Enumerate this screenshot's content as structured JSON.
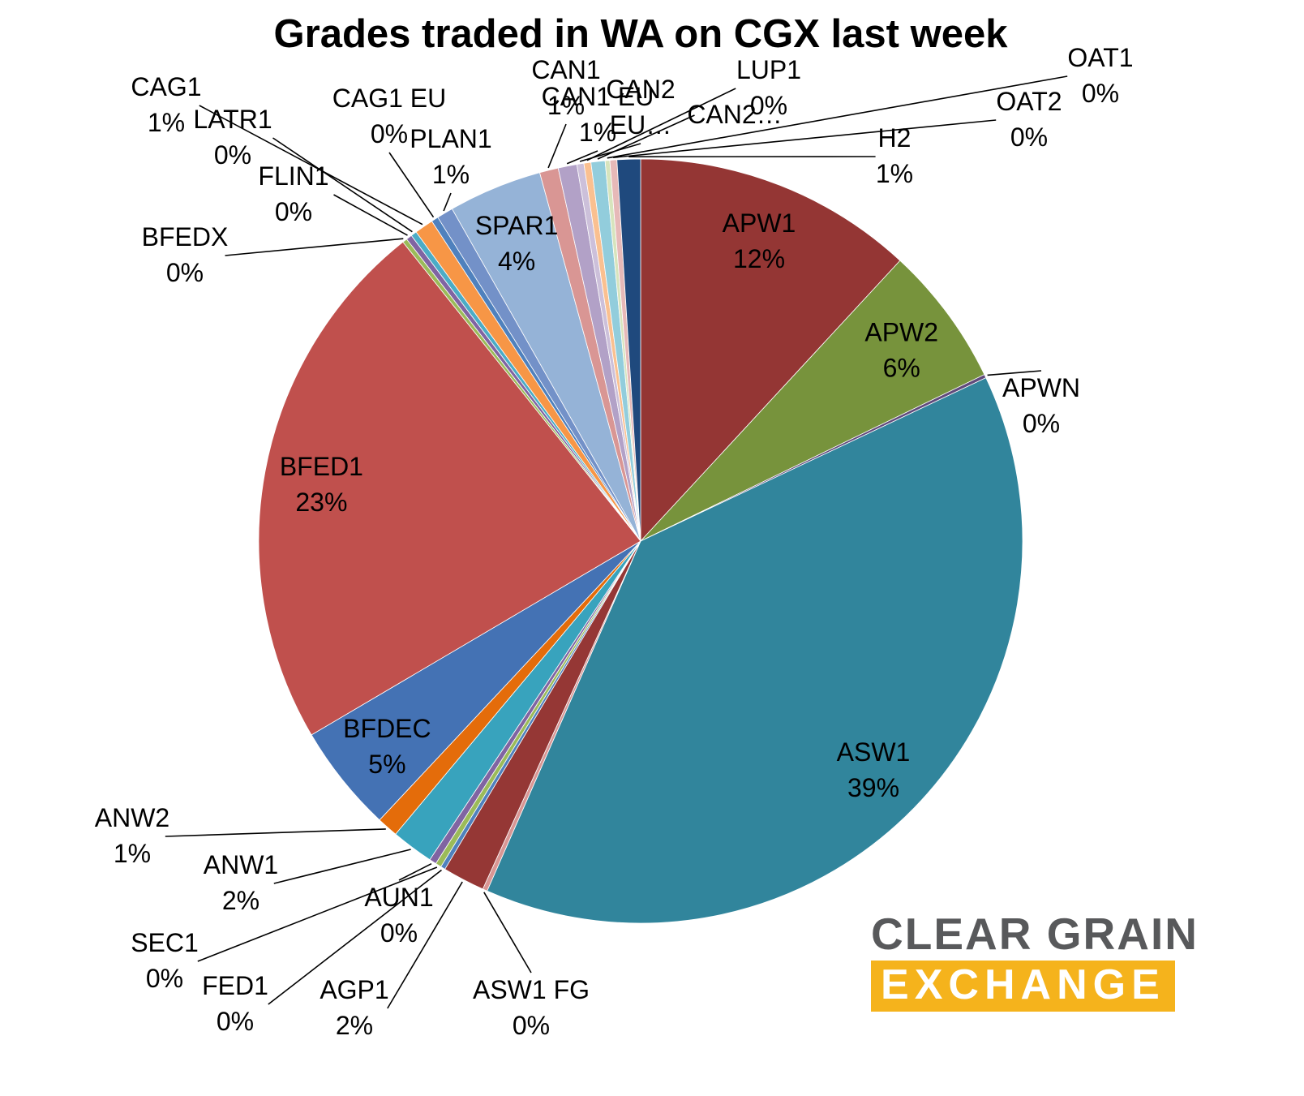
{
  "title": "Grades traded in WA on CGX last week",
  "logo": {
    "line1": "CLEAR GRAIN",
    "line2": "EXCHANGE",
    "gray": "#58595B",
    "gold": "#F5B31C",
    "white": "#FFFFFF"
  },
  "chart_data": {
    "type": "pie",
    "title": "Grades traded in WA on CGX last week",
    "legend": "none",
    "label_style": "category name + percentage, leader lines for small slices",
    "slices": [
      {
        "label": "APW1",
        "pct": "12%",
        "value": 12.0,
        "color": "#943634"
      },
      {
        "label": "APW2",
        "pct": "6%",
        "value": 6.0,
        "color": "#77933C"
      },
      {
        "label": "APWN",
        "pct": "0%",
        "value": 0.15,
        "color": "#604A7B"
      },
      {
        "label": "ASW1",
        "pct": "39%",
        "value": 39.0,
        "color": "#31859C"
      },
      {
        "label": "ASW1 FG",
        "pct": "0%",
        "value": 0.2,
        "color": "#D99694"
      },
      {
        "label": "AGP1",
        "pct": "2%",
        "value": 1.8,
        "color": "#953735"
      },
      {
        "label": "FED1",
        "pct": "0%",
        "value": 0.2,
        "color": "#4F81BD"
      },
      {
        "label": "SEC1",
        "pct": "0%",
        "value": 0.25,
        "color": "#9BBB59"
      },
      {
        "label": "AUN1",
        "pct": "0%",
        "value": 0.3,
        "color": "#8064A2"
      },
      {
        "label": "ANW1",
        "pct": "2%",
        "value": 1.8,
        "color": "#38A3BD"
      },
      {
        "label": "ANW2",
        "pct": "1%",
        "value": 0.9,
        "color": "#E46C0A"
      },
      {
        "label": "BFDEC",
        "pct": "5%",
        "value": 4.6,
        "color": "#4472B4"
      },
      {
        "label": "BFED1",
        "pct": "23%",
        "value": 23.0,
        "color": "#C0504D"
      },
      {
        "label": "BFEDX",
        "pct": "0%",
        "value": 0.2,
        "color": "#9BBB59"
      },
      {
        "label": "FLIN1",
        "pct": "0%",
        "value": 0.25,
        "color": "#8064A2"
      },
      {
        "label": "LATR1",
        "pct": "0%",
        "value": 0.25,
        "color": "#4BACC6"
      },
      {
        "label": "CAG1",
        "pct": "1%",
        "value": 0.8,
        "color": "#F79646"
      },
      {
        "label": "CAG1 EU",
        "pct": "0%",
        "value": 0.3,
        "color": "#4F81BD"
      },
      {
        "label": "PLAN1",
        "pct": "1%",
        "value": 0.7,
        "color": "#7391C8"
      },
      {
        "label": "SPAR1",
        "pct": "4%",
        "value": 4.0,
        "color": "#95B3D7"
      },
      {
        "label": "CAN1",
        "pct": "1%",
        "value": 0.8,
        "color": "#D99694"
      },
      {
        "label": "CAN1 EU",
        "pct": "1%",
        "value": 0.8,
        "color": "#B2A1C7"
      },
      {
        "label": "CAN2 EU",
        "pct": "",
        "value": 0.3,
        "color": "#CCC0DA",
        "display": [
          "CAN2",
          "EU…"
        ]
      },
      {
        "label": "LUP1",
        "pct": "0%",
        "value": 0.3,
        "color": "#FAC090"
      },
      {
        "label": "CAN2",
        "pct": "",
        "value": 0.6,
        "color": "#92CDDC",
        "display": [
          "CAN2…"
        ]
      },
      {
        "label": "OAT1",
        "pct": "0%",
        "value": 0.2,
        "color": "#D7E4BD"
      },
      {
        "label": "OAT2",
        "pct": "0%",
        "value": 0.3,
        "color": "#E6B9B8"
      },
      {
        "label": "H2",
        "pct": "1%",
        "value": 1.0,
        "color": "#1F497D"
      }
    ]
  }
}
